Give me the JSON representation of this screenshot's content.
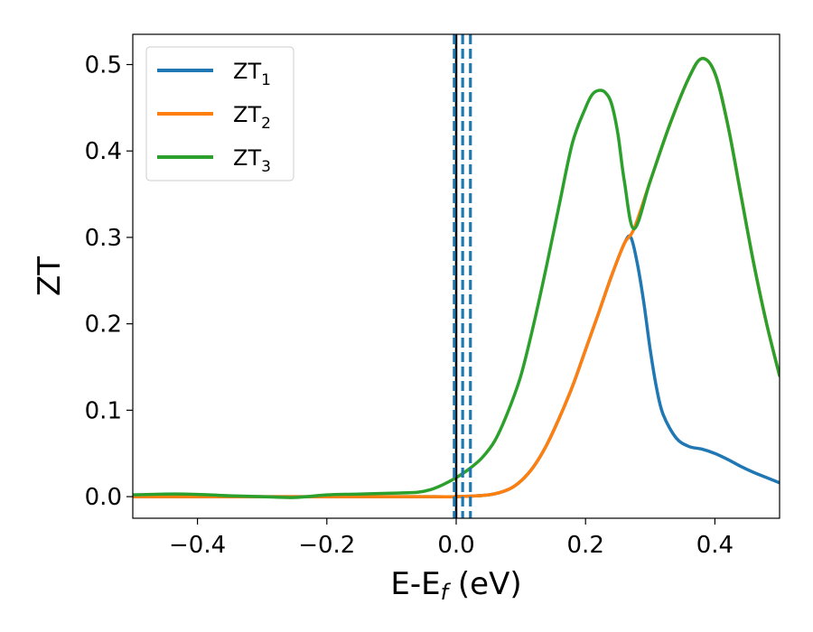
{
  "chart_data": {
    "type": "line",
    "xlabel": "E-E",
    "xlabel_sub": "f",
    "xlabel_unit": " (eV)",
    "ylabel": "ZT",
    "xlim": [
      -0.5,
      0.5
    ],
    "ylim": [
      -0.025,
      0.535
    ],
    "xticks": [
      -0.4,
      -0.2,
      0.0,
      0.2,
      0.4
    ],
    "xtick_labels": [
      "−0.4",
      "−0.2",
      "0.0",
      "0.2",
      "0.4"
    ],
    "yticks": [
      0.0,
      0.1,
      0.2,
      0.3,
      0.4,
      0.5
    ],
    "ytick_labels": [
      "0.0",
      "0.1",
      "0.2",
      "0.3",
      "0.4",
      "0.5"
    ],
    "grid": false,
    "legend_position": "top-left",
    "vertical_lines": [
      {
        "x": 0.0,
        "style": "solid",
        "color": "#000000"
      },
      {
        "x": -0.003,
        "style": "dashed",
        "color": "#1f77b4"
      },
      {
        "x": 0.01,
        "style": "dashed",
        "color": "#1f77b4"
      },
      {
        "x": 0.022,
        "style": "dashed",
        "color": "#1f77b4"
      }
    ],
    "series": [
      {
        "name": "ZT",
        "name_sub": "1",
        "color": "#1f77b4",
        "x": [
          -0.5,
          -0.45,
          -0.4,
          -0.35,
          -0.3,
          -0.25,
          -0.2,
          -0.15,
          -0.1,
          -0.05,
          0.0,
          0.05,
          0.08,
          0.1,
          0.12,
          0.14,
          0.16,
          0.18,
          0.2,
          0.22,
          0.24,
          0.26,
          0.27,
          0.28,
          0.29,
          0.3,
          0.31,
          0.32,
          0.34,
          0.36,
          0.38,
          0.4,
          0.42,
          0.44,
          0.46,
          0.48,
          0.5
        ],
        "y": [
          0.0,
          0.0,
          0.0,
          0.0,
          0.0,
          0.0,
          0.0,
          0.0,
          0.0,
          0.0,
          0.0,
          0.002,
          0.008,
          0.018,
          0.035,
          0.06,
          0.092,
          0.128,
          0.17,
          0.212,
          0.255,
          0.293,
          0.3,
          0.27,
          0.225,
          0.17,
          0.125,
          0.095,
          0.068,
          0.058,
          0.055,
          0.05,
          0.043,
          0.035,
          0.028,
          0.022,
          0.016
        ]
      },
      {
        "name": "ZT",
        "name_sub": "2",
        "color": "#ff7f0e",
        "x": [
          -0.5,
          -0.45,
          -0.4,
          -0.35,
          -0.3,
          -0.25,
          -0.2,
          -0.15,
          -0.1,
          -0.05,
          0.0,
          0.05,
          0.08,
          0.1,
          0.12,
          0.14,
          0.16,
          0.18,
          0.2,
          0.22,
          0.24,
          0.26,
          0.275,
          0.3,
          0.33,
          0.36,
          0.38,
          0.4,
          0.42,
          0.44,
          0.46,
          0.48,
          0.5
        ],
        "y": [
          0.0,
          0.0,
          0.0,
          0.0,
          0.0,
          0.0,
          0.0,
          0.0,
          0.0,
          0.0,
          0.0,
          0.002,
          0.008,
          0.018,
          0.035,
          0.06,
          0.092,
          0.128,
          0.17,
          0.212,
          0.255,
          0.293,
          0.31,
          0.365,
          0.43,
          0.485,
          0.507,
          0.49,
          0.43,
          0.35,
          0.27,
          0.2,
          0.14
        ]
      },
      {
        "name": "ZT",
        "name_sub": "3",
        "color": "#2ca02c",
        "x": [
          -0.5,
          -0.45,
          -0.42,
          -0.38,
          -0.35,
          -0.3,
          -0.25,
          -0.2,
          -0.15,
          -0.1,
          -0.06,
          -0.04,
          -0.02,
          0.0,
          0.02,
          0.04,
          0.06,
          0.08,
          0.1,
          0.12,
          0.14,
          0.16,
          0.18,
          0.2,
          0.21,
          0.22,
          0.23,
          0.24,
          0.25,
          0.26,
          0.275,
          0.3,
          0.33,
          0.36,
          0.38,
          0.4,
          0.42,
          0.44,
          0.46,
          0.48,
          0.5
        ],
        "y": [
          0.002,
          0.003,
          0.003,
          0.002,
          0.001,
          0.0,
          -0.001,
          0.002,
          0.003,
          0.004,
          0.005,
          0.008,
          0.014,
          0.022,
          0.032,
          0.045,
          0.065,
          0.098,
          0.14,
          0.2,
          0.268,
          0.34,
          0.41,
          0.45,
          0.465,
          0.47,
          0.468,
          0.455,
          0.42,
          0.365,
          0.31,
          0.365,
          0.43,
          0.485,
          0.507,
          0.49,
          0.43,
          0.35,
          0.27,
          0.2,
          0.14
        ]
      }
    ]
  }
}
